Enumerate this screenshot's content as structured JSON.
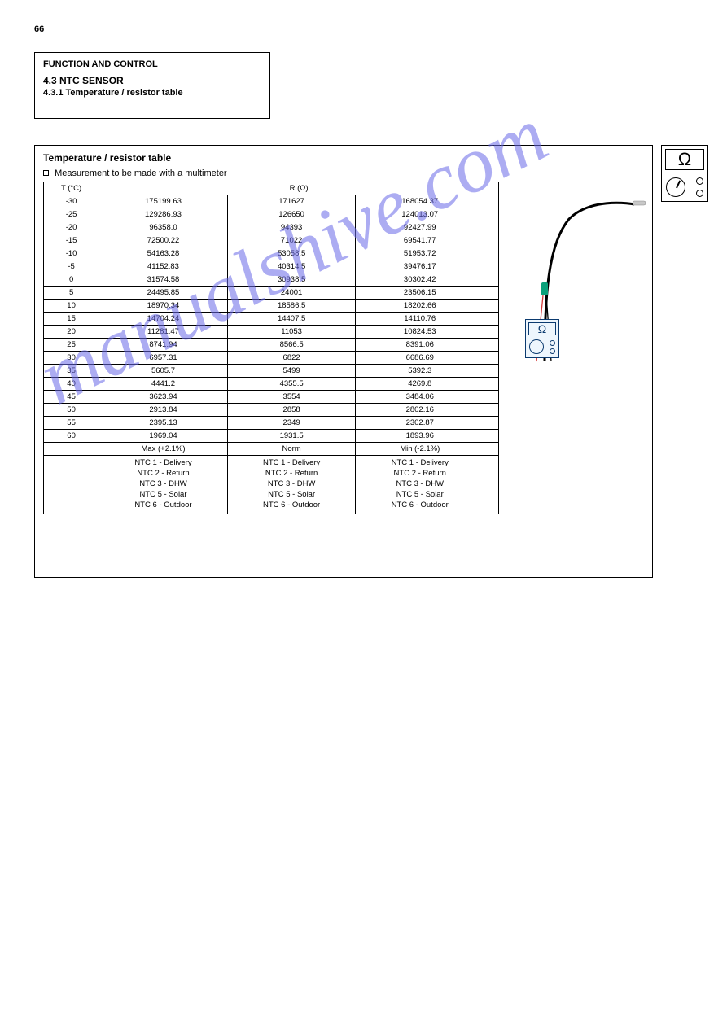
{
  "page_number": "66",
  "title_box": {
    "top": "FUNCTION AND CONTROL",
    "main": "4.3 NTC SENSOR",
    "subtitle": "4.3.1 Temperature / resistor table"
  },
  "panel": {
    "heading": "Temperature / resistor table",
    "bullet": "Measurement to be made with a multimeter",
    "columns": [
      "T (°C)",
      "R (Ω)"
    ],
    "col_spans": [
      1,
      4
    ],
    "rows": [
      [
        "-30",
        "175199.63",
        "171627",
        "168054.37",
        ""
      ],
      [
        "-25",
        "129286.93",
        "126650",
        "124013.07",
        ""
      ],
      [
        "-20",
        "96358.0",
        "94393",
        "92427.99",
        ""
      ],
      [
        "-15",
        "72500.22",
        "71022",
        "69541.77",
        ""
      ],
      [
        "-10",
        "54163.28",
        "53058.5",
        "51953.72",
        ""
      ],
      [
        "-5",
        "41152.83",
        "40314.5",
        "39476.17",
        ""
      ],
      [
        "0",
        "31574.58",
        "30938.5",
        "30302.42",
        ""
      ],
      [
        "5",
        "24495.85",
        "24001",
        "23506.15",
        ""
      ],
      [
        "10",
        "18970.34",
        "18586.5",
        "18202.66",
        ""
      ],
      [
        "15",
        "14704.24",
        "14407.5",
        "14110.76",
        ""
      ],
      [
        "20",
        "11281.47",
        "11053",
        "10824.53",
        ""
      ],
      [
        "25",
        "8741.94",
        "8566.5",
        "8391.06",
        ""
      ],
      [
        "30",
        "6957.31",
        "6822",
        "6686.69",
        ""
      ],
      [
        "35",
        "5605.7",
        "5499",
        "5392.3",
        ""
      ],
      [
        "40",
        "4441.2",
        "4355.5",
        "4269.8",
        ""
      ],
      [
        "45",
        "3623.94",
        "3554",
        "3484.06",
        ""
      ],
      [
        "50",
        "2913.84",
        "2858",
        "2802.16",
        ""
      ],
      [
        "55",
        "2395.13",
        "2349",
        "2302.87",
        ""
      ],
      [
        "60",
        "1969.04",
        "1931.5",
        "1893.96",
        ""
      ]
    ],
    "foot_labels": [
      "",
      "Max (+2.1%)",
      "Norm",
      "Min (-2.1%)",
      ""
    ],
    "foot_types": [
      "",
      "NTC 1 - Delivery\nNTC 2 - Return\nNTC 3 - DHW\nNTC 5 - Solar\nNTC 6 - Outdoor",
      "NTC 1 - Delivery\nNTC 2 - Return\nNTC 3 - DHW\nNTC 5 - Solar\nNTC 6 - Outdoor",
      "NTC 1 - Delivery\nNTC 2 - Return\nNTC 3 - DHW\nNTC 5 - Solar\nNTC 6 - Outdoor",
      ""
    ]
  },
  "ohm_symbol": "Ω",
  "watermark": "manualshive.com",
  "colors": {
    "watermark": "#6a6ae8",
    "miniohm_border": "#0b3a6f",
    "miniohm_bg": "#eef6fd",
    "probe_tip": "#c8c8c8",
    "probe_joint": "#0aa07a",
    "lead_red": "#d53a3a",
    "lead_black": "#000000"
  }
}
